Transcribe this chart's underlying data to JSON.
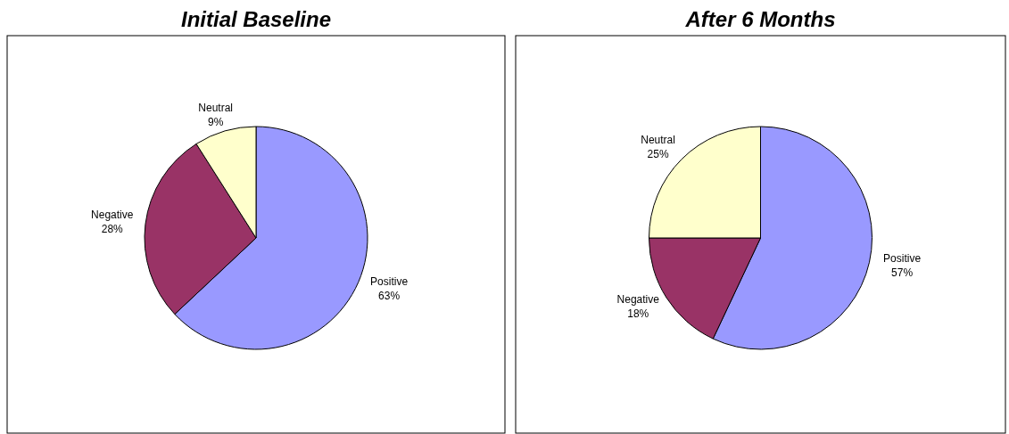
{
  "chart_data": [
    {
      "type": "pie",
      "title": "Initial Baseline",
      "categories": [
        "Positive",
        "Negative",
        "Neutral"
      ],
      "values": [
        63,
        28,
        9
      ],
      "colors": [
        "#9999ff",
        "#993366",
        "#ffffcc"
      ],
      "value_labels": [
        "63%",
        "28%",
        "9%"
      ]
    },
    {
      "type": "pie",
      "title": "After 6 Months",
      "categories": [
        "Positive",
        "Negative",
        "Neutral"
      ],
      "values": [
        57,
        18,
        25
      ],
      "colors": [
        "#9999ff",
        "#993366",
        "#ffffcc"
      ],
      "value_labels": [
        "57%",
        "18%",
        "25%"
      ]
    }
  ]
}
